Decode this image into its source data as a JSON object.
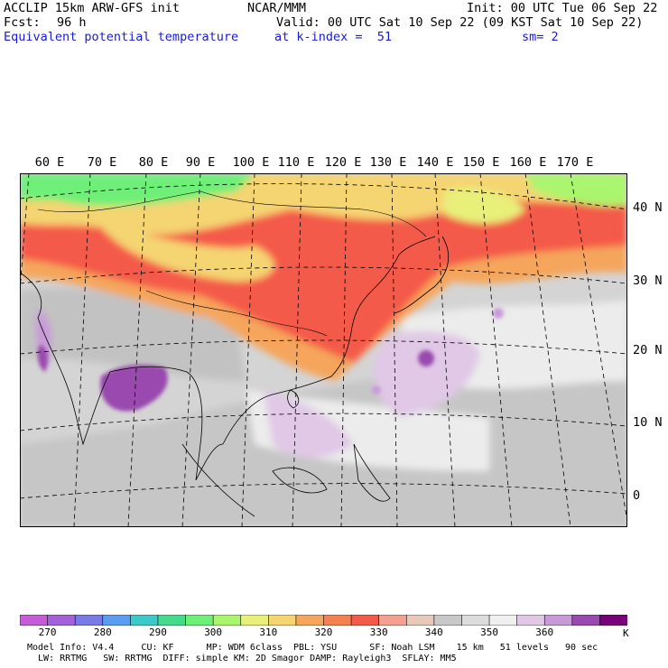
{
  "header": {
    "model": "ACCLIP 15km ARW-GFS init",
    "org": "NCAR/MMM",
    "init": "Init: 00 UTC Tue 06 Sep 22",
    "fcst_label": "Fcst:",
    "fcst_value": "96 h",
    "valid": "Valid: 00 UTC Sat 10 Sep 22 (09 KST Sat 10 Sep 22)",
    "field": "Equivalent potential temperature",
    "level": "at k-index =  51",
    "smooth": "sm= 2"
  },
  "map": {
    "lon_labels": [
      "60 E",
      "70 E",
      "80 E",
      "90 E",
      "100 E",
      "110 E",
      "120 E",
      "130 E",
      "140 E",
      "150 E",
      "160 E",
      "170 E"
    ],
    "lat_labels": [
      "40 N",
      "30 N",
      "20 N",
      "10 N",
      "0"
    ]
  },
  "colorbar": {
    "unit": "K",
    "labels": [
      "270",
      "280",
      "290",
      "300",
      "310",
      "320",
      "330",
      "340",
      "350",
      "360"
    ],
    "colors": [
      "#c55bd6",
      "#a362d9",
      "#7a7ae6",
      "#5b9df0",
      "#3cc9c9",
      "#44dc8c",
      "#6ef078",
      "#aaf56e",
      "#e8f07a",
      "#f5d472",
      "#f5a65c",
      "#f58050",
      "#f45a4a",
      "#f5a090",
      "#e8c8ba",
      "#c8c8c8",
      "#dcdcdc",
      "#f0f0f0",
      "#e0c8e6",
      "#c89ad8",
      "#9a4aae",
      "#780078"
    ]
  },
  "footer": {
    "line1": "Model Info: V4.4     CU: KF      MP: WDM 6class  PBL: YSU      SF: Noah LSM    15 km   51 levels   90 sec",
    "line2": "  LW: RRTMG   SW: RRTMG  DIFF: simple KM: 2D Smagor DAMP: Rayleigh3  SFLAY: MM5"
  }
}
